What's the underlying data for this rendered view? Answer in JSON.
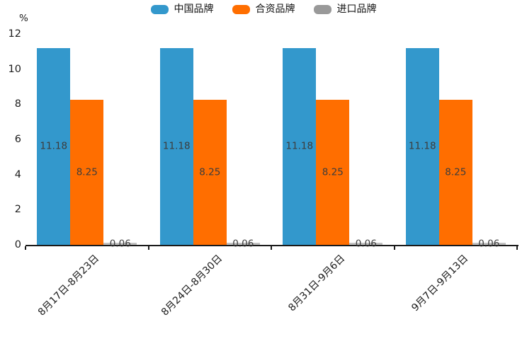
{
  "chart_data": {
    "type": "bar",
    "title": "",
    "unit_label": "%",
    "categories": [
      "8月17日-8月23日",
      "8月24日-8月30日",
      "8月31日-9月6日",
      "9月7日-9月13日"
    ],
    "series": [
      {
        "name": "中国品牌",
        "color": "#3398cc",
        "values": [
          11.18,
          11.18,
          11.18,
          11.18
        ]
      },
      {
        "name": "合资品牌",
        "color": "#ff6e00",
        "values": [
          8.25,
          8.25,
          8.25,
          8.25
        ]
      },
      {
        "name": "进口品牌",
        "color": "#999999",
        "bar_render_color": "#c2c2c2",
        "values": [
          0.06,
          0.06,
          0.06,
          0.06
        ]
      }
    ],
    "value_labels": [
      "11.18",
      "8.25",
      "0.06"
    ],
    "ylabel": "%",
    "ylim": [
      0,
      12
    ],
    "yticks": [
      0,
      2,
      4,
      6,
      8,
      10,
      12
    ],
    "legend_position": "top",
    "grid": false,
    "x_tick_label_rotation_deg": 45
  },
  "colors": {
    "axis": "#1a1a1a",
    "tick_label": "#1c1c1c",
    "value_label": "#3c3c3c",
    "background": "#ffffff"
  }
}
